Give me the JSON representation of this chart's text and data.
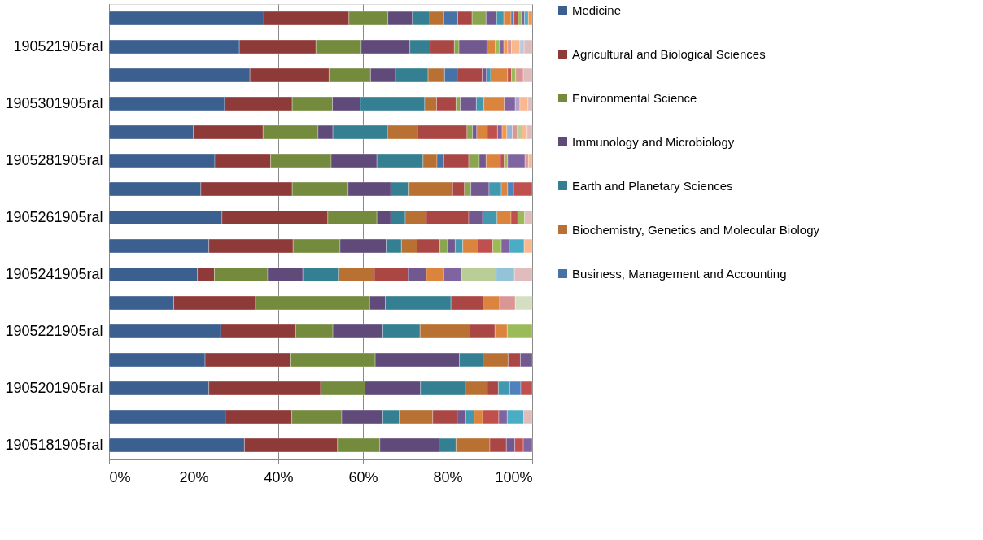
{
  "chart_data": {
    "type": "bar",
    "orientation": "horizontal",
    "stacked": true,
    "categories": [
      null,
      "190521905ral",
      null,
      "1905301905ral",
      null,
      "1905281905ral",
      null,
      "1905261905ral",
      null,
      "1905241905ral",
      null,
      "1905221905ral",
      null,
      "1905201905ral",
      null,
      "1905181905ral"
    ],
    "series": [
      {
        "name": "Medicine",
        "color": "#3b5f8f",
        "values": [
          36.6,
          30.8,
          33.3,
          27.3,
          19.9,
          25.0,
          21.7,
          26.7,
          23.6,
          20.9,
          15.3,
          26.4,
          22.7,
          23.6,
          27.5,
          32.0
        ]
      },
      {
        "name": "Agricultural and Biological Sciences",
        "color": "#8e3a38",
        "values": [
          20.1,
          18.1,
          18.7,
          16.0,
          16.5,
          13.2,
          21.6,
          25.0,
          19.9,
          4.0,
          19.3,
          17.7,
          20.1,
          26.4,
          15.7,
          22.0
        ]
      },
      {
        "name": "Environmental Science",
        "color": "#748b3e",
        "values": [
          9.2,
          10.7,
          9.8,
          9.5,
          13.0,
          14.3,
          13.2,
          11.6,
          11.1,
          12.6,
          27.0,
          8.8,
          20.1,
          10.5,
          11.8,
          10.0
        ]
      },
      {
        "name": "Immunology and Microbiology",
        "color": "#5f4a7a",
        "values": [
          5.8,
          11.5,
          5.9,
          6.6,
          3.5,
          10.8,
          10.1,
          3.3,
          10.9,
          8.3,
          3.7,
          11.8,
          19.9,
          13.1,
          9.7,
          14.0
        ]
      },
      {
        "name": "Earth and Planetary Sciences",
        "color": "#357f92",
        "values": [
          4.1,
          4.8,
          7.7,
          15.2,
          12.9,
          10.9,
          4.3,
          3.4,
          3.6,
          8.4,
          15.5,
          8.8,
          5.6,
          10.6,
          3.9,
          4.0
        ]
      },
      {
        "name": "Biochemistry, Genetics and Molecular Biology",
        "color": "#b87132",
        "values": [
          3.3,
          null,
          3.9,
          2.8,
          7.1,
          3.3,
          10.3,
          5.0,
          3.7,
          8.5,
          null,
          11.8,
          5.9,
          5.2,
          7.9,
          8.0
        ]
      },
      {
        "name": "Business, Management and Accounting",
        "color": "#4572a7",
        "values": [
          3.3,
          null,
          3.0,
          null,
          null,
          1.6,
          null,
          null,
          null,
          null,
          null,
          null,
          null,
          null,
          null,
          null
        ]
      },
      {
        "color": "#aa4643",
        "values": [
          3.4,
          5.7,
          5.9,
          4.6,
          11.7,
          5.9,
          2.8,
          10.0,
          5.4,
          8.1,
          7.6,
          5.9,
          2.9,
          2.6,
          5.8,
          3.9
        ]
      },
      {
        "color": "#89a54e",
        "values": [
          3.3,
          1.1,
          null,
          1.0,
          1.3,
          2.5,
          1.5,
          null,
          1.8,
          null,
          null,
          null,
          null,
          null,
          null,
          null
        ]
      },
      {
        "color": "#71588f",
        "values": [
          2.5,
          6.6,
          1.0,
          3.8,
          1.0,
          1.6,
          4.3,
          3.3,
          1.8,
          4.2,
          null,
          null,
          2.8,
          null,
          2.0,
          2.0
        ]
      },
      {
        "color": "#4198af",
        "values": [
          1.7,
          null,
          1.0,
          1.8,
          null,
          null,
          2.9,
          3.4,
          1.8,
          null,
          null,
          null,
          null,
          2.7,
          2.0,
          null
        ]
      },
      {
        "color": "#db843d",
        "values": [
          1.7,
          2.0,
          4.0,
          4.8,
          2.5,
          3.4,
          1.5,
          3.3,
          3.6,
          4.1,
          3.9,
          2.9,
          null,
          null,
          2.0,
          null
        ]
      },
      {
        "color": "#4f81bd",
        "values": [
          0.7,
          null,
          null,
          null,
          null,
          null,
          1.4,
          null,
          null,
          null,
          null,
          null,
          null,
          2.6,
          null,
          null
        ]
      },
      {
        "color": "#c0504d",
        "values": [
          1.0,
          null,
          0.9,
          null,
          2.4,
          0.9,
          4.4,
          1.6,
          3.5,
          null,
          null,
          null,
          null,
          2.7,
          3.8,
          2.0
        ]
      },
      {
        "color": "#9bbb59",
        "values": [
          0.7,
          1.0,
          1.0,
          null,
          null,
          0.8,
          null,
          1.6,
          2.0,
          null,
          null,
          5.9,
          null,
          null,
          null,
          null
        ]
      },
      {
        "color": "#8064a2",
        "values": [
          0.8,
          1.0,
          null,
          2.6,
          1.1,
          4.1,
          null,
          null,
          1.9,
          4.2,
          null,
          null,
          null,
          null,
          2.0,
          2.1
        ]
      },
      {
        "color": "#4bacc6",
        "values": [
          0.9,
          null,
          null,
          null,
          null,
          null,
          null,
          null,
          3.5,
          null,
          null,
          null,
          null,
          null,
          3.9,
          null
        ]
      },
      {
        "color": "#f79646",
        "values": [
          0.9,
          0.9,
          null,
          null,
          1.1,
          null,
          null,
          null,
          null,
          null,
          null,
          null,
          null,
          null,
          null,
          null
        ]
      },
      {
        "color": "#95b3d7",
        "values": [
          null,
          null,
          null,
          null,
          1.3,
          null,
          null,
          null,
          null,
          null,
          null,
          null,
          null,
          null,
          null,
          null
        ]
      },
      {
        "color": "#d99694",
        "values": [
          null,
          0.9,
          1.8,
          null,
          1.2,
          0.8,
          null,
          null,
          null,
          null,
          3.7,
          null,
          null,
          null,
          null,
          null
        ]
      },
      {
        "color": "#b9cd96",
        "values": [
          null,
          null,
          null,
          null,
          1.1,
          null,
          null,
          null,
          null,
          8.2,
          null,
          null,
          null,
          null,
          null,
          null
        ]
      },
      {
        "color": "#b3a2c7",
        "values": [
          null,
          null,
          null,
          1.1,
          null,
          null,
          null,
          null,
          null,
          null,
          null,
          null,
          null,
          null,
          null,
          null
        ]
      },
      {
        "color": "#93c3d6",
        "values": [
          null,
          null,
          null,
          null,
          null,
          null,
          null,
          null,
          null,
          4.3,
          null,
          null,
          null,
          null,
          null,
          null
        ]
      },
      {
        "color": "#fab88e",
        "values": [
          null,
          2.0,
          null,
          1.9,
          1.2,
          0.9,
          null,
          null,
          1.9,
          null,
          null,
          null,
          null,
          null,
          null,
          null
        ]
      },
      {
        "color": "#b9c9e0",
        "values": [
          null,
          1.0,
          null,
          null,
          null,
          null,
          null,
          null,
          null,
          null,
          null,
          null,
          null,
          null,
          null,
          null
        ]
      },
      {
        "color": "#e0bcbc",
        "values": [
          null,
          1.9,
          2.1,
          1.0,
          1.2,
          null,
          null,
          1.8,
          null,
          4.2,
          null,
          null,
          null,
          null,
          2.0,
          null
        ]
      },
      {
        "color": "#d3dfc0",
        "values": [
          null,
          null,
          null,
          null,
          null,
          null,
          null,
          null,
          null,
          null,
          4.0,
          null,
          null,
          null,
          null,
          null
        ]
      }
    ],
    "xlim": [
      0,
      100
    ],
    "xticks": [
      {
        "value": 0,
        "label": "0%"
      },
      {
        "value": 20,
        "label": "20%"
      },
      {
        "value": 40,
        "label": "40%"
      },
      {
        "value": 60,
        "label": "60%"
      },
      {
        "value": 80,
        "label": "80%"
      },
      {
        "value": 100,
        "label": "100%"
      }
    ],
    "grid": "x",
    "legend": "right"
  }
}
